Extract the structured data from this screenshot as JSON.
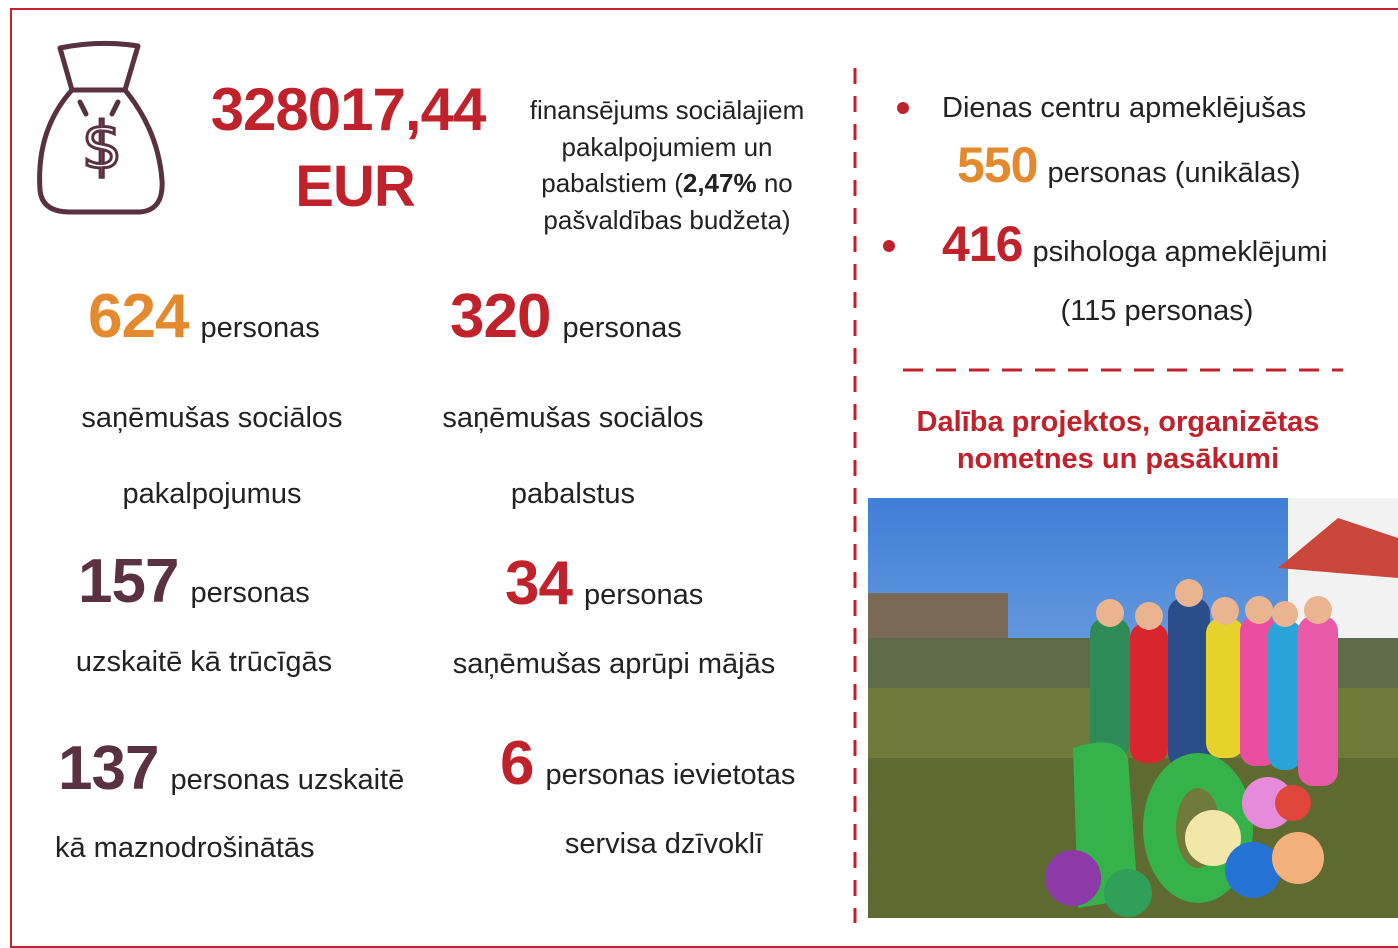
{
  "header": {
    "amount": "328017,44",
    "currency": "EUR",
    "description": {
      "line1": "finansējums sociālajiem",
      "line2": "pakalpojumiem un",
      "line3_pre": "pabalstiem (",
      "highlight": "2,47%",
      "line3_post": "no",
      "line4": "pašvaldības budžeta)"
    }
  },
  "stats": [
    {
      "number": "624",
      "unit": "personas",
      "caption": [
        "saņēmušas sociālos",
        "pakalpojumus"
      ]
    },
    {
      "number": "320",
      "unit": "personas",
      "caption": [
        "saņēmušas sociālos",
        "pabalstus"
      ]
    },
    {
      "number": "157",
      "unit": "personas",
      "caption": [
        "uzskaitē kā trūcīgās"
      ]
    },
    {
      "number": "34",
      "unit": "personas",
      "caption": [
        "saņēmušas aprūpi mājās"
      ]
    },
    {
      "number": "137",
      "unit": "personas uzskaitē",
      "caption": [
        "kā maznodrošinātās"
      ]
    },
    {
      "number": "6",
      "unit": "personas ievietotas",
      "caption": [
        "servisa dzīvoklī"
      ]
    }
  ],
  "sidebar": {
    "bullet1": {
      "text": "Dienas centru apmeklējušas",
      "number": "550",
      "unit": "personas (unikālas)"
    },
    "bullet2": {
      "number": "416",
      "unit": "psihologa apmeklējumi",
      "note": "(115 personas)"
    },
    "heading": [
      "Dalība projektos, organizētas",
      "nometnes un pasākumi"
    ]
  }
}
